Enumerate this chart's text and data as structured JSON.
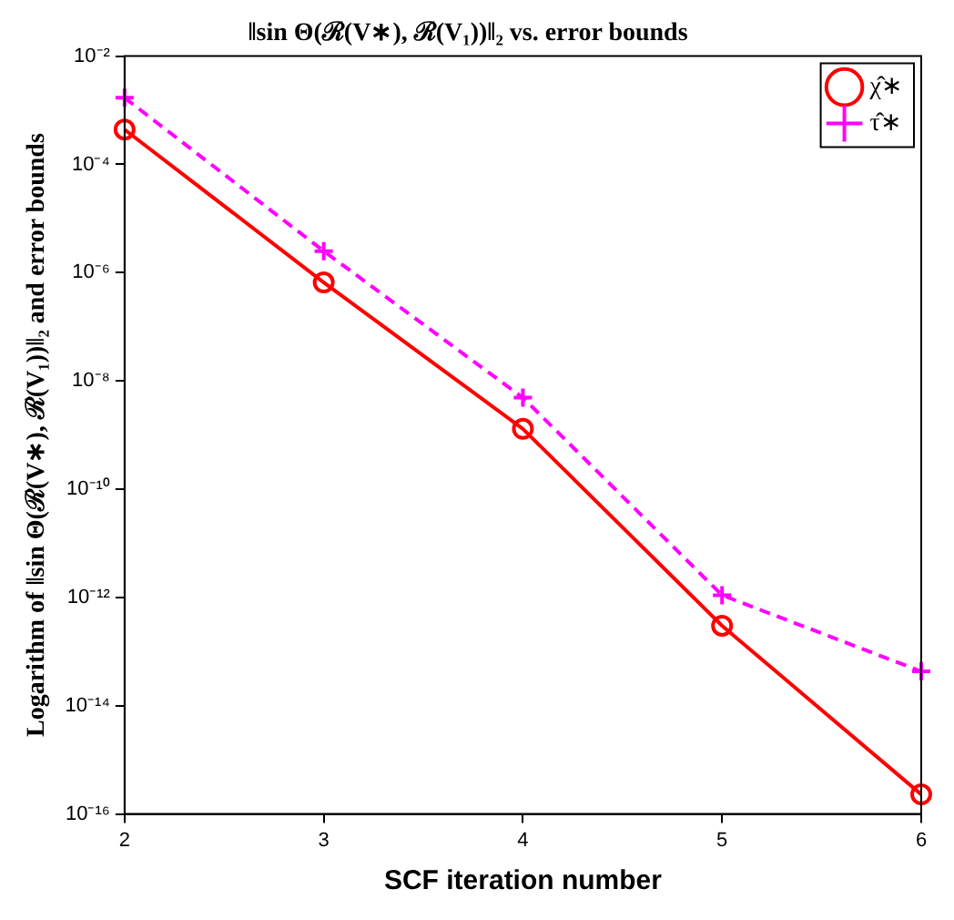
{
  "chart_data": {
    "type": "line",
    "title": "‖sin Θ(ℛ(V∗), ℛ(V₁))‖₂ vs. error bounds",
    "xlabel": "SCF iteration number",
    "ylabel": "Logarithm of ‖sin Θ(ℛ(V∗), ℛ(V₁))‖₂ and error bounds",
    "x": [
      2,
      3,
      4,
      5,
      6
    ],
    "series": [
      {
        "name": "χ̂∗",
        "color": "#ff0000",
        "values": [
          0.00044,
          6.6e-07,
          1.3e-09,
          3e-13,
          2.3e-16
        ],
        "marker": "circle",
        "line_style": "solid"
      },
      {
        "name": "τ̂∗",
        "color": "#ff00ff",
        "values": [
          0.0017,
          2.5e-06,
          4.9e-09,
          1.1e-12,
          4.3e-14
        ],
        "marker": "cross",
        "line_style": "dashed"
      }
    ],
    "log": "y",
    "xlim": [
      2,
      6
    ],
    "xticks": [
      2,
      3,
      4,
      5,
      6
    ],
    "ylim": [
      1e-16,
      0.01
    ],
    "yticks": [
      {
        "value": 1e-16,
        "label": "10⁻¹⁶"
      },
      {
        "value": 1e-14,
        "label": "10⁻¹⁴"
      },
      {
        "value": 1e-12,
        "label": "10⁻¹²"
      },
      {
        "value": 1e-10,
        "label": "10⁻¹⁰"
      },
      {
        "value": 1e-08,
        "label": "10⁻⁸"
      },
      {
        "value": 1e-06,
        "label": "10⁻⁶"
      },
      {
        "value": 0.0001,
        "label": "10⁻⁴"
      },
      {
        "value": 0.01,
        "label": "10⁻²"
      }
    ],
    "grid": false,
    "legend": "top right"
  }
}
